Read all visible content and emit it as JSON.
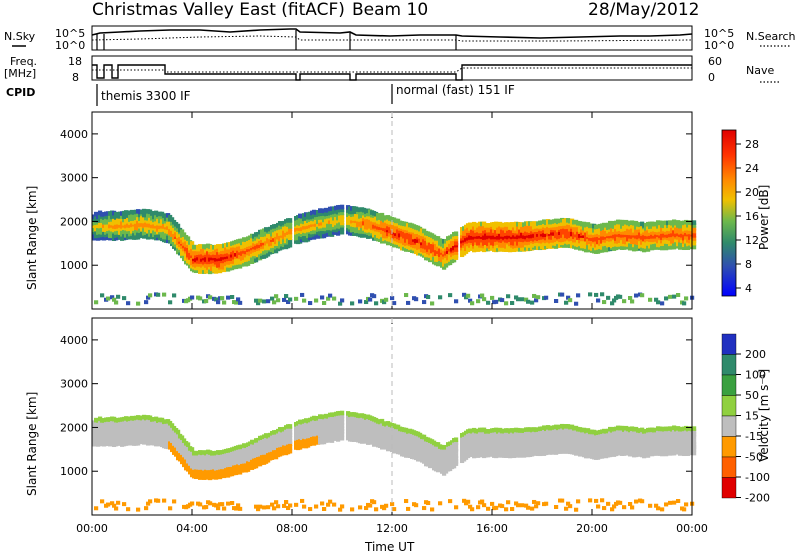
{
  "header": {
    "title": "Christmas Valley East (fitACF)",
    "beam": "Beam 10",
    "date": "28/May/2012"
  },
  "nsky_panel": {
    "label": "N.Sky",
    "ytick_top": "10^5",
    "ytick_bottom": "10^0",
    "right_label": "N.Search",
    "right_tick_top": "10^5",
    "right_tick_bottom": "10^0"
  },
  "freq_panel": {
    "label_line1": "Freq.",
    "label_line2": "[MHz]",
    "ytick_top": "18",
    "ytick_bottom": "8",
    "right_label": "Nave",
    "right_tick_top": "60",
    "right_tick_bottom": "0"
  },
  "cpid_panel": {
    "label": "CPID",
    "modes": [
      {
        "text": "themis 3300 IF",
        "start_hour": 0.0
      },
      {
        "text": "normal (fast) 151 IF",
        "start_hour": 12.0
      }
    ]
  },
  "colorbars": {
    "power": {
      "label": "Power [dB]",
      "ticks": [
        "28",
        "24",
        "20",
        "16",
        "12",
        "8",
        "4"
      ],
      "colors": [
        "#e00000",
        "#ff4400",
        "#ff8a00",
        "#f0c000",
        "#6cb84c",
        "#2f8a6b",
        "#2f4fb0",
        "#0000ff"
      ]
    },
    "velocity": {
      "label": "Velocity [m s⁻¹]",
      "ticks": [
        "200",
        "100",
        "50",
        "15",
        "-15",
        "-50",
        "-100",
        "-200"
      ],
      "colors": [
        "#2030c0",
        "#2f8a6b",
        "#3aa040",
        "#90d040",
        "#bebebe",
        "#ff9a00",
        "#ff6000",
        "#e00000"
      ]
    }
  },
  "chart_data": [
    {
      "type": "heatmap",
      "panel": "power",
      "ylabel": "Slant Range [km]",
      "xlabel": "",
      "ylim": [
        0,
        4500
      ],
      "xlim": [
        0,
        24
      ],
      "yticks": [
        "4000",
        "3000",
        "2000",
        "1000"
      ],
      "ytick_values": [
        4000,
        3000,
        2000,
        1000
      ],
      "colorbar_label": "Power [dB]",
      "bands": [
        {
          "name": "main",
          "x": [
            0,
            1,
            2,
            3,
            4,
            5,
            6,
            7,
            8,
            9,
            10,
            11,
            12,
            13,
            14,
            15,
            16,
            17,
            18,
            19,
            20,
            21,
            22,
            23,
            24
          ],
          "y": [
            1900,
            1900,
            1950,
            1850,
            1150,
            1150,
            1300,
            1550,
            1800,
            1950,
            2050,
            1950,
            1750,
            1550,
            1250,
            1650,
            1650,
            1650,
            1700,
            1750,
            1600,
            1700,
            1650,
            1700,
            1700
          ],
          "peak_db": [
            16,
            20,
            20,
            20,
            26,
            28,
            24,
            22,
            20,
            18,
            18,
            22,
            26,
            26,
            24,
            28,
            28,
            28,
            26,
            26,
            24,
            24,
            24,
            24,
            24
          ]
        }
      ]
    },
    {
      "type": "heatmap",
      "panel": "velocity",
      "ylabel": "Slant Range [km]",
      "xlabel": "Time UT",
      "ylim": [
        0,
        4500
      ],
      "xlim": [
        0,
        24
      ],
      "yticks": [
        "4000",
        "3000",
        "2000",
        "1000"
      ],
      "ytick_values": [
        4000,
        3000,
        2000,
        1000
      ],
      "xticks": [
        "00:00",
        "04:00",
        "08:00",
        "12:00",
        "16:00",
        "20:00",
        "00:00"
      ],
      "xtick_values": [
        0,
        4,
        8,
        12,
        16,
        20,
        24
      ],
      "colorbar_label": "Velocity [m s⁻¹]"
    }
  ]
}
